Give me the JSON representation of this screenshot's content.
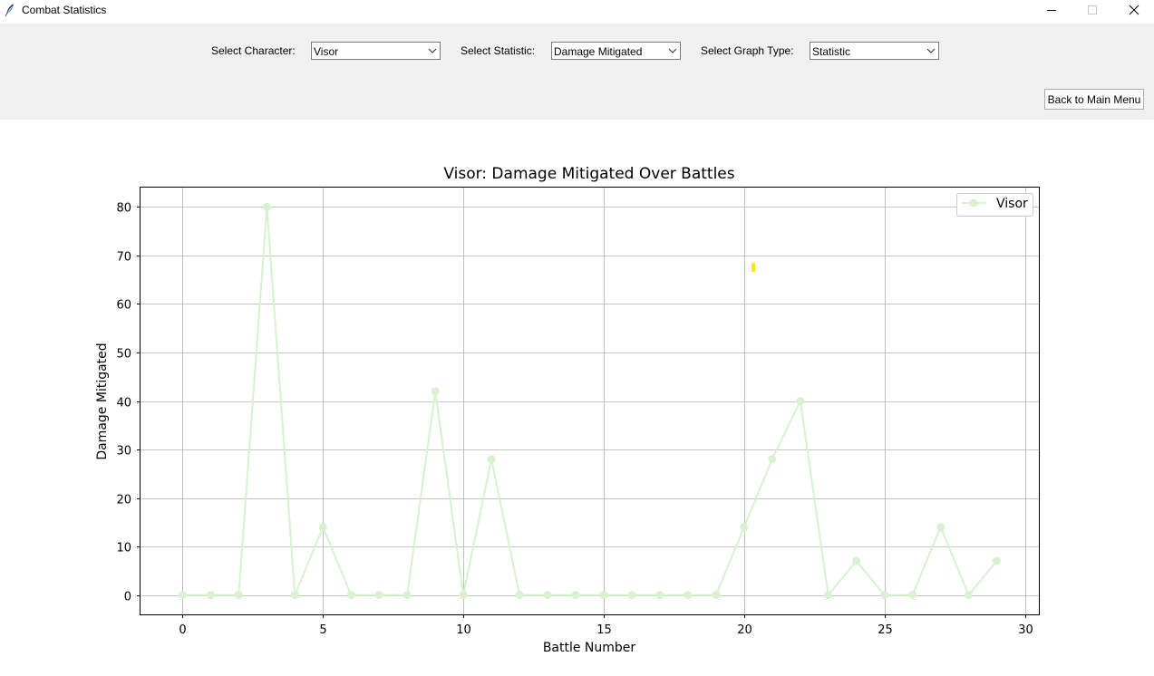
{
  "window": {
    "title": "Combat Statistics",
    "icons": {
      "app": "feather-icon",
      "minimize": "minimize-icon",
      "maximize": "maximize-icon",
      "close": "close-icon"
    }
  },
  "controls": {
    "character_label": "Select Character:",
    "character_value": "Visor",
    "statistic_label": "Select Statistic:",
    "statistic_value": "Damage Mitigated",
    "graph_type_label": "Select Graph Type:",
    "graph_type_value": "Statistic",
    "back_button_label": "Back to Main Menu"
  },
  "chart_data": {
    "type": "line",
    "title": "Visor: Damage Mitigated Over Battles",
    "xlabel": "Battle Number",
    "ylabel": "Damage Mitigated",
    "xlim": [
      -1.5,
      30.5
    ],
    "ylim": [
      -4,
      84
    ],
    "xticks": [
      0,
      5,
      10,
      15,
      20,
      25,
      30
    ],
    "yticks": [
      0,
      10,
      20,
      30,
      40,
      50,
      60,
      70,
      80
    ],
    "grid": true,
    "legend_position": "top-right",
    "series": [
      {
        "name": "Visor",
        "color": "#d6f2cf",
        "marker": "circle",
        "x": [
          0,
          1,
          2,
          3,
          4,
          5,
          6,
          7,
          8,
          9,
          10,
          11,
          12,
          13,
          14,
          15,
          16,
          17,
          18,
          19,
          20,
          21,
          22,
          23,
          24,
          25,
          26,
          27,
          28,
          29
        ],
        "values": [
          0,
          0,
          0,
          80,
          0,
          14,
          0,
          0,
          0,
          42,
          0,
          28,
          0,
          0,
          0,
          0,
          0,
          0,
          0,
          0,
          14,
          28,
          40,
          0,
          7,
          0,
          0,
          14,
          0,
          7
        ]
      }
    ],
    "annotation_color": "#ffe800"
  }
}
